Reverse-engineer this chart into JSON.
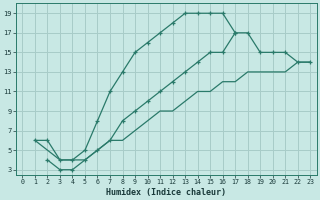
{
  "xlabel": "Humidex (Indice chaleur)",
  "bg_color": "#c8e8e4",
  "grid_color": "#a8ccc8",
  "line_color": "#2a7a6a",
  "xlim": [
    -0.5,
    23.5
  ],
  "ylim": [
    2.5,
    20.0
  ],
  "xticks": [
    0,
    1,
    2,
    3,
    4,
    5,
    6,
    7,
    8,
    9,
    10,
    11,
    12,
    13,
    14,
    15,
    16,
    17,
    18,
    19,
    20,
    21,
    22,
    23
  ],
  "yticks": [
    3,
    5,
    7,
    9,
    11,
    13,
    15,
    17,
    19
  ],
  "line1_x": [
    1,
    2,
    3,
    4,
    5,
    6,
    7,
    8,
    9,
    10,
    11,
    12,
    13,
    14,
    15,
    16,
    17
  ],
  "line1_y": [
    6,
    6,
    4,
    4,
    5,
    8,
    11,
    13,
    15,
    16,
    17,
    18,
    19,
    19,
    19,
    19,
    17
  ],
  "line2_x": [
    2,
    3,
    4,
    5,
    6,
    7,
    8,
    9,
    10,
    11,
    12,
    13,
    14,
    15,
    16,
    17,
    18,
    19,
    20,
    21,
    22,
    23
  ],
  "line2_y": [
    4,
    3,
    3,
    4,
    5,
    6,
    8,
    9,
    10,
    11,
    12,
    13,
    14,
    15,
    15,
    17,
    17,
    15,
    15,
    15,
    14,
    14
  ],
  "line3_x": [
    1,
    2,
    3,
    4,
    5,
    6,
    7,
    8,
    9,
    10,
    11,
    12,
    13,
    14,
    15,
    16,
    17,
    18,
    19,
    20,
    21,
    22,
    23
  ],
  "line3_y": [
    6,
    5,
    4,
    4,
    4,
    5,
    6,
    6,
    7,
    8,
    9,
    9,
    10,
    11,
    11,
    12,
    12,
    13,
    13,
    13,
    13,
    14,
    14
  ]
}
